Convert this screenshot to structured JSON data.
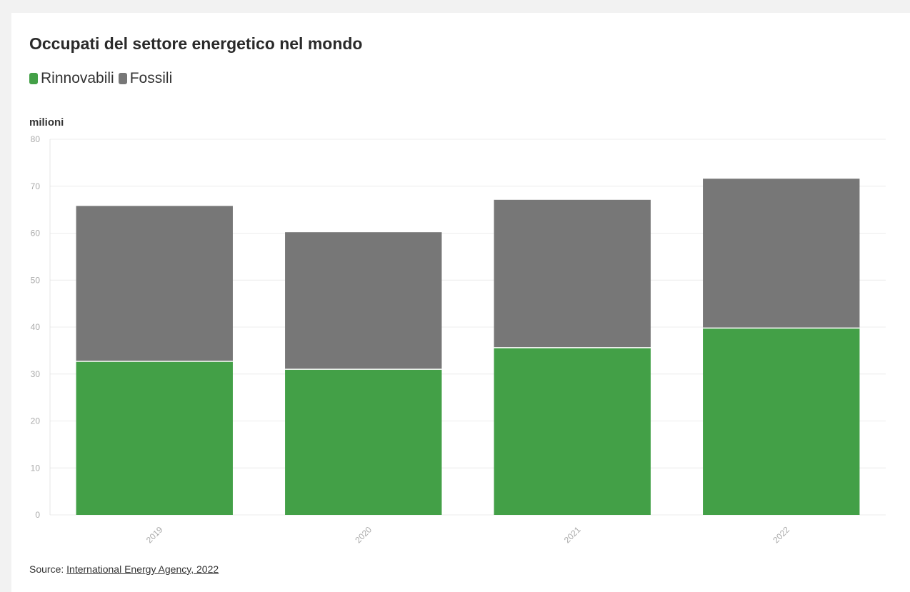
{
  "chart_data": {
    "type": "bar",
    "stacked": true,
    "title": "Occupati del settore energetico nel mondo",
    "ylabel": "milioni",
    "xlabel": "",
    "categories": [
      "2019",
      "2020",
      "2021",
      "2022"
    ],
    "series": [
      {
        "name": "Rinnovabili",
        "color": "#43a047",
        "values": [
          32.7,
          31.0,
          35.6,
          39.8
        ]
      },
      {
        "name": "Fossili",
        "color": "#777777",
        "values": [
          33.1,
          29.2,
          31.5,
          31.8
        ]
      }
    ],
    "ylim": [
      0,
      80
    ],
    "yticks": [
      "0",
      "10",
      "20",
      "30",
      "40",
      "50",
      "60",
      "70",
      "80"
    ],
    "grid": true,
    "legend_position": "top-left"
  },
  "source": {
    "prefix": "Source: ",
    "link_text": "International Energy Agency, 2022"
  }
}
